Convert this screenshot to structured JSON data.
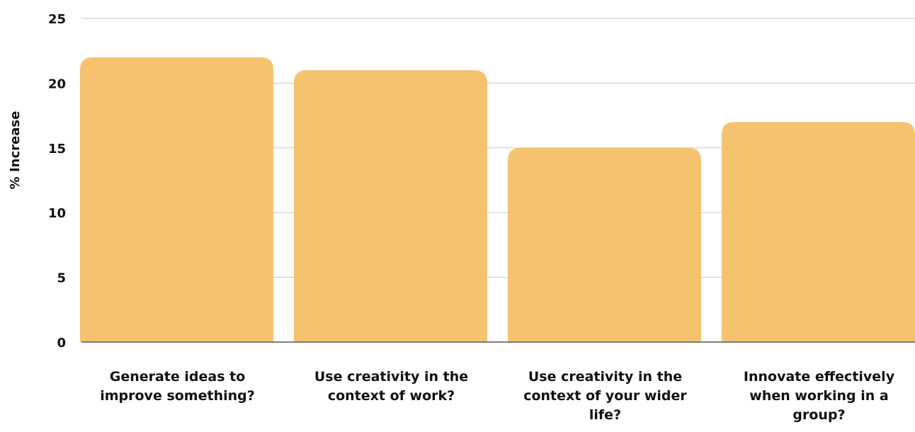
{
  "chart_data": {
    "type": "bar",
    "categories": [
      [
        "Generate ideas to",
        "improve something?"
      ],
      [
        "Use creativity in the",
        "context of work?"
      ],
      [
        "Use creativity in the",
        "context of your wider",
        "life?"
      ],
      [
        "Innovate effectively",
        "when working in a",
        "group?"
      ]
    ],
    "values": [
      22,
      21,
      15,
      17
    ],
    "xlabel": "",
    "ylabel": "% Increase",
    "ylim": [
      0,
      25
    ],
    "yticks": [
      0,
      5,
      10,
      15,
      20,
      25
    ],
    "grid": true,
    "legend": "none",
    "colors": {
      "bar": "#F5C370",
      "grid": "#c8c8c8",
      "baseline": "#555555"
    }
  }
}
